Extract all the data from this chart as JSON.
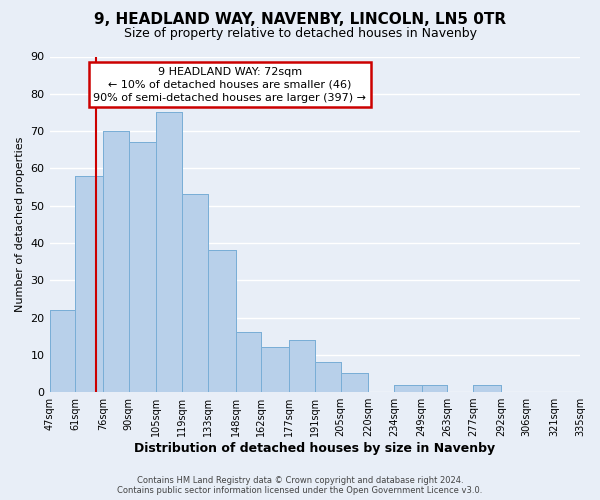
{
  "title": "9, HEADLAND WAY, NAVENBY, LINCOLN, LN5 0TR",
  "subtitle": "Size of property relative to detached houses in Navenby",
  "xlabel": "Distribution of detached houses by size in Navenby",
  "ylabel": "Number of detached properties",
  "bin_edges": [
    47,
    61,
    76,
    90,
    105,
    119,
    133,
    148,
    162,
    177,
    191,
    205,
    220,
    234,
    249,
    263,
    277,
    292,
    306,
    321,
    335
  ],
  "bar_heights": [
    22,
    58,
    70,
    67,
    75,
    53,
    38,
    16,
    12,
    14,
    8,
    5,
    0,
    2,
    2,
    0,
    2,
    0,
    0,
    0
  ],
  "bar_color": "#b8d0ea",
  "bar_edgecolor": "#7aaed6",
  "tick_labels": [
    "47sqm",
    "61sqm",
    "76sqm",
    "90sqm",
    "105sqm",
    "119sqm",
    "133sqm",
    "148sqm",
    "162sqm",
    "177sqm",
    "191sqm",
    "205sqm",
    "220sqm",
    "234sqm",
    "249sqm",
    "263sqm",
    "277sqm",
    "292sqm",
    "306sqm",
    "321sqm",
    "335sqm"
  ],
  "ylim": [
    0,
    90
  ],
  "yticks": [
    0,
    10,
    20,
    30,
    40,
    50,
    60,
    70,
    80,
    90
  ],
  "vline_x": 72,
  "vline_color": "#cc0000",
  "annotation_title": "9 HEADLAND WAY: 72sqm",
  "annotation_line1": "← 10% of detached houses are smaller (46)",
  "annotation_line2": "90% of semi-detached houses are larger (397) →",
  "annotation_box_facecolor": "#ffffff",
  "annotation_box_edgecolor": "#cc0000",
  "footer_line1": "Contains HM Land Registry data © Crown copyright and database right 2024.",
  "footer_line2": "Contains public sector information licensed under the Open Government Licence v3.0.",
  "background_color": "#e8eef7",
  "plot_bg_color": "#e8eef7",
  "grid_color": "#ffffff",
  "title_fontsize": 11,
  "subtitle_fontsize": 9,
  "xlabel_fontsize": 9,
  "ylabel_fontsize": 8,
  "tick_fontsize": 7,
  "annotation_fontsize": 8,
  "footer_fontsize": 6
}
